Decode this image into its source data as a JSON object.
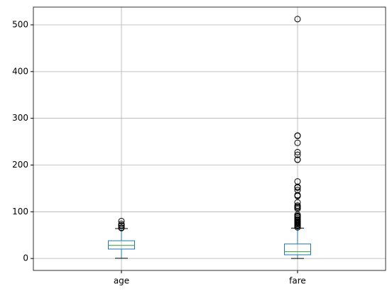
{
  "chart_data": {
    "type": "box",
    "categories": [
      "age",
      "fare"
    ],
    "boxes": [
      {
        "whislo": 0.42,
        "q1": 20.125,
        "med": 28,
        "q3": 38,
        "whishi": 64,
        "fliers": [
          65,
          66,
          70,
          70.5,
          71,
          74,
          80
        ]
      },
      {
        "whislo": 0,
        "q1": 7.91,
        "med": 14.45,
        "q3": 31,
        "whishi": 65,
        "fliers": [
          66.6,
          69.3,
          69.55,
          71.28,
          73.5,
          75.25,
          76.29,
          76.73,
          77.29,
          77.96,
          78.27,
          78.85,
          79.2,
          79.65,
          81.86,
          82.17,
          83.16,
          83.48,
          86.5,
          89.1,
          90,
          91.08,
          93.5,
          106.43,
          108.9,
          110.88,
          113.28,
          120,
          133.65,
          134.5,
          135.63,
          146.52,
          151.55,
          153.46,
          164.87,
          211.34,
          211.5,
          221.78,
          227.53,
          247.52,
          262.38,
          263,
          512.33
        ]
      }
    ],
    "box_color": "#1f77b4",
    "median_color": "#2ca02c",
    "cap_color": "#000000",
    "flier_color": "#000000",
    "ylim": [
      -25.6,
      538
    ],
    "yticks": [
      0,
      100,
      200,
      300,
      400,
      500
    ],
    "grid": true
  }
}
